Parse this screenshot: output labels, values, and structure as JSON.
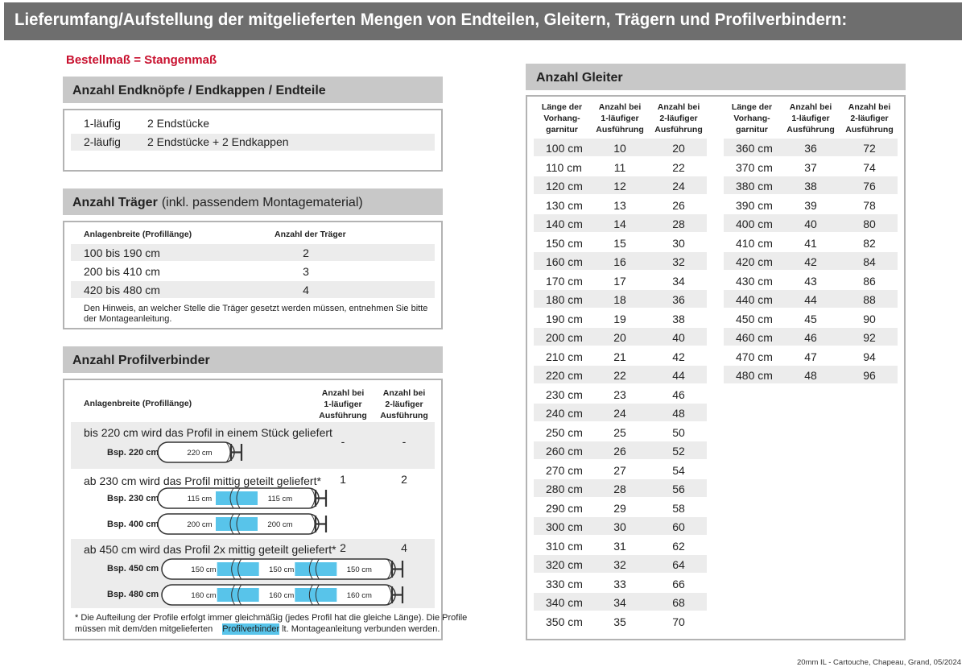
{
  "header": {
    "title": "Lieferumfang/Aufstellung der mitgelieferten Mengen von Endteilen, Gleitern, Trägern und Profilverbindern:"
  },
  "subtitle": "Bestellmaß = Stangenmaß",
  "endteile": {
    "title": "Anzahl Endknöpfe / Endkappen / Endteile",
    "rows": [
      [
        "1-läufig",
        "2 Endstücke"
      ],
      [
        "2-läufig",
        "2 Endstücke + 2 Endkappen"
      ]
    ]
  },
  "traeger": {
    "title_bold": "Anzahl Träger",
    "title_rest": "(inkl. passendem Montagematerial)",
    "headers": [
      "Anlagenbreite (Profillänge)",
      "Anzahl der Träger"
    ],
    "rows": [
      [
        "100 bis 190 cm",
        2
      ],
      [
        "200 bis 410 cm",
        3
      ],
      [
        "420 bis 480 cm",
        4
      ]
    ],
    "note": [
      "Den Hinweis, an welcher Stelle die Träger gesetzt werden müssen, entnehmen Sie bitte",
      "der Montageanleitung."
    ]
  },
  "profilverbinder": {
    "title": "Anzahl Profilverbinder",
    "headers": [
      [
        "Anlagenbreite (Profillänge)"
      ],
      [
        "Anzahl bei",
        "1-läufiger",
        "Ausführung"
      ],
      [
        "Anzahl bei",
        "2-läufiger",
        "Ausführung"
      ]
    ],
    "groups": [
      {
        "text": "bis 220 cm wird das Profil in einem Stück geliefert",
        "values": [
          "-",
          "-"
        ],
        "examples": [
          {
            "label": "Bsp. 220 cm",
            "segments": [
              "220 cm"
            ]
          }
        ]
      },
      {
        "text": "ab 230 cm wird das Profil mittig geteilt geliefert*",
        "values": [
          1,
          2
        ],
        "examples": [
          {
            "label": "Bsp. 230 cm",
            "segments": [
              "115 cm",
              "115 cm"
            ]
          },
          {
            "label": "Bsp. 400 cm",
            "segments": [
              "200 cm",
              "200 cm"
            ]
          }
        ]
      },
      {
        "text": "ab 450 cm wird das Profil 2x mittig geteilt geliefert*",
        "values": [
          2,
          4
        ],
        "examples": [
          {
            "label": "Bsp. 450 cm",
            "segments": [
              "150 cm",
              "150 cm",
              "150 cm"
            ]
          },
          {
            "label": "Bsp. 480 cm",
            "segments": [
              "160 cm",
              "160 cm",
              "160 cm"
            ]
          }
        ]
      }
    ],
    "footnote": {
      "line1": "* Die Aufteilung der Profile erfolgt immer gleichmäßig (jedes Profil hat die gleiche Länge). Die Profile",
      "line2_start": "müssen mit dem/den mitgelieferten",
      "highlight": "Profilverbinder",
      "line2_end": "lt. Montageanleitung verbunden werden."
    }
  },
  "gleiter": {
    "title": "Anzahl Gleiter",
    "headers": [
      [
        "Länge der",
        "Vorhang-",
        "garnitur"
      ],
      [
        "Anzahl bei",
        "1-läufiger",
        "Ausführung"
      ],
      [
        "Anzahl bei",
        "2-läufiger",
        "Ausführung"
      ]
    ],
    "left_rows": [
      [
        "100 cm",
        10,
        20
      ],
      [
        "110 cm",
        11,
        22
      ],
      [
        "120 cm",
        12,
        24
      ],
      [
        "130 cm",
        13,
        26
      ],
      [
        "140 cm",
        14,
        28
      ],
      [
        "150 cm",
        15,
        30
      ],
      [
        "160 cm",
        16,
        32
      ],
      [
        "170 cm",
        17,
        34
      ],
      [
        "180 cm",
        18,
        36
      ],
      [
        "190 cm",
        19,
        38
      ],
      [
        "200 cm",
        20,
        40
      ],
      [
        "210 cm",
        21,
        42
      ],
      [
        "220 cm",
        22,
        44
      ],
      [
        "230 cm",
        23,
        46
      ],
      [
        "240 cm",
        24,
        48
      ],
      [
        "250 cm",
        25,
        50
      ],
      [
        "260 cm",
        26,
        52
      ],
      [
        "270 cm",
        27,
        54
      ],
      [
        "280 cm",
        28,
        56
      ],
      [
        "290 cm",
        29,
        58
      ],
      [
        "300 cm",
        30,
        60
      ],
      [
        "310 cm",
        31,
        62
      ],
      [
        "320 cm",
        32,
        64
      ],
      [
        "330 cm",
        33,
        66
      ],
      [
        "340 cm",
        34,
        68
      ],
      [
        "350 cm",
        35,
        70
      ]
    ],
    "right_rows": [
      [
        "360 cm",
        36,
        72
      ],
      [
        "370 cm",
        37,
        74
      ],
      [
        "380 cm",
        38,
        76
      ],
      [
        "390 cm",
        39,
        78
      ],
      [
        "400 cm",
        40,
        80
      ],
      [
        "410 cm",
        41,
        82
      ],
      [
        "420 cm",
        42,
        84
      ],
      [
        "430 cm",
        43,
        86
      ],
      [
        "440 cm",
        44,
        88
      ],
      [
        "450 cm",
        45,
        90
      ],
      [
        "460 cm",
        46,
        92
      ],
      [
        "470 cm",
        47,
        94
      ],
      [
        "480 cm",
        48,
        96
      ]
    ]
  },
  "footer": "20mm IL - Cartouche, Chapeau, Grand, 05/2024"
}
